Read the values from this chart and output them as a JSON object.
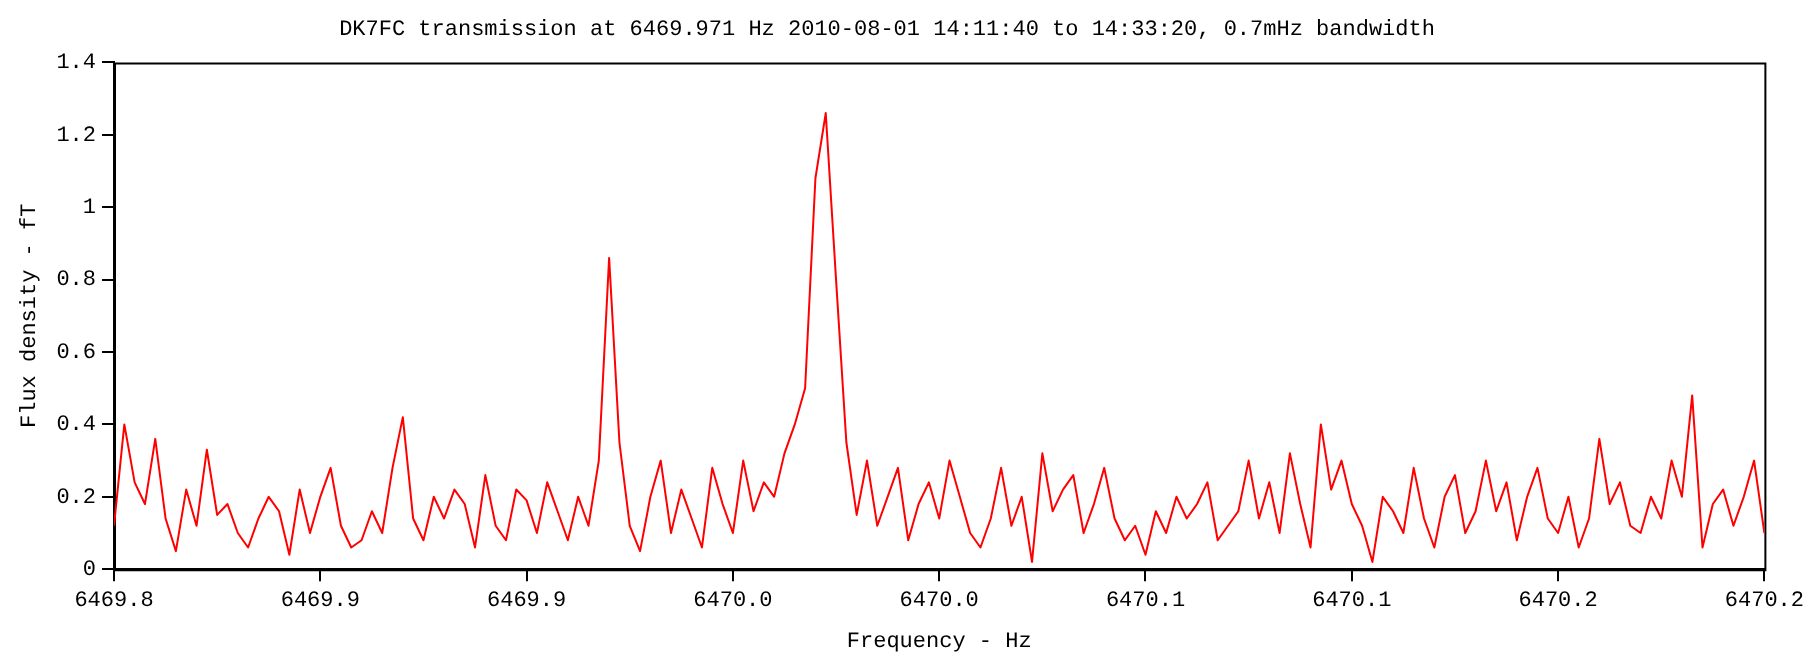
{
  "chart_data": {
    "type": "line",
    "title": "DK7FC transmission at 6469.971 Hz 2010-08-01 14:11:40 to 14:33:20, 0.7mHz bandwidth",
    "xlabel": "Frequency - Hz",
    "ylabel": "Flux density - fT",
    "xlim": [
      6469.8,
      6470.2
    ],
    "xticks": [
      {
        "value": 6469.8,
        "label": "6469.8"
      },
      {
        "value": 6469.85,
        "label": "6469.9"
      },
      {
        "value": 6469.9,
        "label": "6469.9"
      },
      {
        "value": 6469.95,
        "label": "6470.0"
      },
      {
        "value": 6470.0,
        "label": "6470.0"
      },
      {
        "value": 6470.05,
        "label": "6470.1"
      },
      {
        "value": 6470.1,
        "label": "6470.1"
      },
      {
        "value": 6470.15,
        "label": "6470.2"
      },
      {
        "value": 6470.2,
        "label": "6470.2"
      }
    ],
    "ylim": [
      0,
      1.4
    ],
    "yticks": [
      0,
      0.2,
      0.4,
      0.6,
      0.8,
      1,
      1.2,
      1.4
    ],
    "grid": false,
    "legend": false,
    "marker": "none",
    "x": [
      6469.8,
      6469.8025,
      6469.805,
      6469.8075,
      6469.81,
      6469.8125,
      6469.815,
      6469.8175,
      6469.82,
      6469.8225,
      6469.825,
      6469.8275,
      6469.83,
      6469.8325,
      6469.835,
      6469.8375,
      6469.84,
      6469.8425,
      6469.845,
      6469.8475,
      6469.85,
      6469.8525,
      6469.855,
      6469.8575,
      6469.86,
      6469.8625,
      6469.865,
      6469.8675,
      6469.87,
      6469.8725,
      6469.875,
      6469.8775,
      6469.88,
      6469.8825,
      6469.885,
      6469.8875,
      6469.89,
      6469.8925,
      6469.895,
      6469.8975,
      6469.9,
      6469.9025,
      6469.905,
      6469.9075,
      6469.91,
      6469.9125,
      6469.915,
      6469.9175,
      6469.92,
      6469.9225,
      6469.925,
      6469.9275,
      6469.93,
      6469.9325,
      6469.935,
      6469.9375,
      6469.94,
      6469.9425,
      6469.945,
      6469.9475,
      6469.95,
      6469.9525,
      6469.955,
      6469.9575,
      6469.96,
      6469.9625,
      6469.965,
      6469.9675,
      6469.97,
      6469.9725,
      6469.975,
      6469.9775,
      6469.98,
      6469.9825,
      6469.985,
      6469.9875,
      6469.99,
      6469.9925,
      6469.995,
      6469.9975,
      6470.0,
      6470.0025,
      6470.005,
      6470.0075,
      6470.01,
      6470.0125,
      6470.015,
      6470.0175,
      6470.02,
      6470.0225,
      6470.025,
      6470.0275,
      6470.03,
      6470.0325,
      6470.035,
      6470.0375,
      6470.04,
      6470.0425,
      6470.045,
      6470.0475,
      6470.05,
      6470.0525,
      6470.055,
      6470.0575,
      6470.06,
      6470.0625,
      6470.065,
      6470.0675,
      6470.07,
      6470.0725,
      6470.075,
      6470.0775,
      6470.08,
      6470.0825,
      6470.085,
      6470.0875,
      6470.09,
      6470.0925,
      6470.095,
      6470.0975,
      6470.1,
      6470.1025,
      6470.105,
      6470.1075,
      6470.11,
      6470.1125,
      6470.115,
      6470.1175,
      6470.12,
      6470.1225,
      6470.125,
      6470.1275,
      6470.13,
      6470.1325,
      6470.135,
      6470.1375,
      6470.14,
      6470.1425,
      6470.145,
      6470.1475,
      6470.15,
      6470.1525,
      6470.155,
      6470.1575,
      6470.16,
      6470.1625,
      6470.165,
      6470.1675,
      6470.17,
      6470.1725,
      6470.175,
      6470.1775,
      6470.18,
      6470.1825,
      6470.185,
      6470.1875,
      6470.19,
      6470.1925,
      6470.195,
      6470.1975,
      6470.2
    ],
    "series": [
      {
        "color": "#ff0000",
        "values": [
          0.12,
          0.4,
          0.24,
          0.18,
          0.36,
          0.14,
          0.05,
          0.22,
          0.12,
          0.33,
          0.15,
          0.18,
          0.1,
          0.06,
          0.14,
          0.2,
          0.16,
          0.04,
          0.22,
          0.1,
          0.2,
          0.28,
          0.12,
          0.06,
          0.08,
          0.16,
          0.1,
          0.28,
          0.42,
          0.14,
          0.08,
          0.2,
          0.14,
          0.22,
          0.18,
          0.06,
          0.26,
          0.12,
          0.08,
          0.22,
          0.19,
          0.1,
          0.24,
          0.16,
          0.08,
          0.2,
          0.12,
          0.3,
          0.86,
          0.35,
          0.12,
          0.05,
          0.2,
          0.3,
          0.1,
          0.22,
          0.14,
          0.06,
          0.28,
          0.18,
          0.1,
          0.3,
          0.16,
          0.24,
          0.2,
          0.32,
          0.4,
          0.5,
          1.08,
          1.26,
          0.8,
          0.35,
          0.15,
          0.3,
          0.12,
          0.2,
          0.28,
          0.08,
          0.18,
          0.24,
          0.14,
          0.3,
          0.2,
          0.1,
          0.06,
          0.14,
          0.28,
          0.12,
          0.2,
          0.02,
          0.32,
          0.16,
          0.22,
          0.26,
          0.1,
          0.18,
          0.28,
          0.14,
          0.08,
          0.12,
          0.04,
          0.16,
          0.1,
          0.2,
          0.14,
          0.18,
          0.24,
          0.08,
          0.12,
          0.16,
          0.3,
          0.14,
          0.24,
          0.1,
          0.32,
          0.18,
          0.06,
          0.4,
          0.22,
          0.3,
          0.18,
          0.12,
          0.02,
          0.2,
          0.16,
          0.1,
          0.28,
          0.14,
          0.06,
          0.2,
          0.26,
          0.1,
          0.16,
          0.3,
          0.16,
          0.24,
          0.08,
          0.2,
          0.28,
          0.14,
          0.1,
          0.2,
          0.06,
          0.14,
          0.36,
          0.18,
          0.24,
          0.12,
          0.1,
          0.2,
          0.14,
          0.3,
          0.2,
          0.48,
          0.06,
          0.18,
          0.22,
          0.12,
          0.2,
          0.3,
          0.1
        ]
      }
    ]
  }
}
